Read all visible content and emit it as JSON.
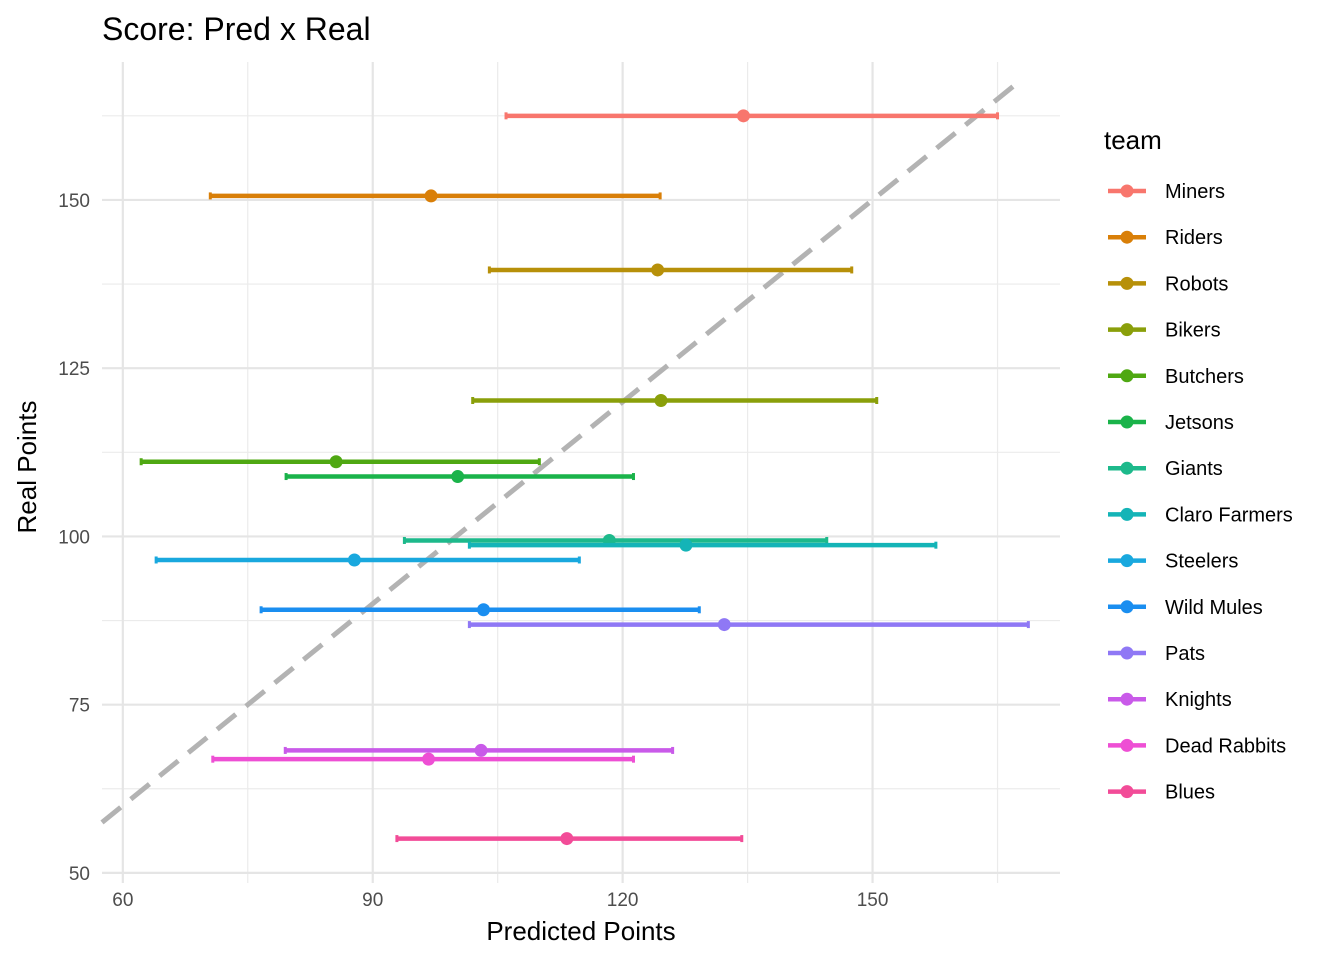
{
  "chart_data": {
    "type": "scatter",
    "title": "Score: Pred x Real",
    "xlabel": "Predicted Points",
    "ylabel": "Real Points",
    "xlim": [
      57.5,
      172.5
    ],
    "ylim": [
      48.5,
      170.5
    ],
    "x_ticks": [
      60,
      90,
      120,
      150
    ],
    "y_ticks": [
      50,
      75,
      100,
      125,
      150
    ],
    "grid": true,
    "legend_title": "team",
    "legend_position": "right",
    "reference_line": {
      "style": "dashed",
      "color": "#b3b3b3",
      "from": [
        57.5,
        57.5
      ],
      "to": [
        167.0,
        167.0
      ]
    },
    "series": [
      {
        "name": "Miners",
        "color": "#F8766D",
        "x": 134.5,
        "y": 162.5,
        "xmin": 106.0,
        "xmax": 165.0
      },
      {
        "name": "Riders",
        "color": "#DB8E00",
        "x": 97.0,
        "y": 150.6,
        "xmin": 70.5,
        "xmax": 124.5
      },
      {
        "name": "Robots",
        "color": "#AEA200",
        "x": 124.2,
        "y": 139.6,
        "xmin": 104.0,
        "xmax": 147.5
      },
      {
        "name": "Bikers",
        "color": "#64B200",
        "x": 124.6,
        "y": 120.2,
        "xmin": 102.0,
        "xmax": 150.5
      },
      {
        "name": "Butchers",
        "color": "#00BD5C",
        "x": 85.6,
        "y": 111.1,
        "xmin": 62.2,
        "xmax": 110.0
      },
      {
        "name": "Jetsons",
        "color": "#00C1A7",
        "x": 100.2,
        "y": 108.9,
        "xmin": 79.6,
        "xmax": 121.3
      },
      {
        "name": "Giants",
        "color": "#00BADE",
        "x": 118.4,
        "y": 99.4,
        "xmin": 93.8,
        "xmax": 144.5
      },
      {
        "name": "Claro Farmers",
        "color": "#00A6FF",
        "x": 127.6,
        "y": 98.7,
        "xmin": 101.6,
        "xmax": 157.6
      },
      {
        "name": "Steelers",
        "color": "#B385FF",
        "x": 87.8,
        "y": 96.5,
        "xmin": 64.0,
        "xmax": 114.8
      },
      {
        "name": "Wild Mules",
        "color": "#EF67EB",
        "x": 103.3,
        "y": 89.1,
        "xmin": 76.6,
        "xmax": 129.2
      },
      {
        "name": "Pats",
        "color": "#FF63B6",
        "x": 132.2,
        "y": 86.9,
        "xmin": 101.6,
        "xmax": 168.7
      },
      {
        "name": "Knights",
        "color": "#D45AF0",
        "x": 103.0,
        "y": 68.2,
        "xmin": 79.5,
        "xmax": 126.0
      },
      {
        "name": "Dead Rabbits",
        "color": "#F14FCB",
        "x": 96.7,
        "y": 66.9,
        "xmin": 70.8,
        "xmax": 121.3
      },
      {
        "name": "Blues",
        "color": "#FE4A96",
        "x": 113.3,
        "y": 55.1,
        "xmin": 92.9,
        "xmax": 134.3
      }
    ],
    "point_colors": {
      "Miners": "#F8766D",
      "Riders": "#D97F08",
      "Robots": "#B79009",
      "Bikers": "#8A9F0A",
      "Butchers": "#4FA812",
      "Jetsons": "#1AB34A",
      "Giants": "#1DB98B",
      "Claro Farmers": "#14B4B7",
      "Steelers": "#19A8DE",
      "Wild Mules": "#1A8EF0",
      "Pats": "#8F78F5",
      "Knights": "#C95AE9",
      "Dead Rabbits": "#EE4FD4",
      "Blues": "#F24C98"
    }
  }
}
